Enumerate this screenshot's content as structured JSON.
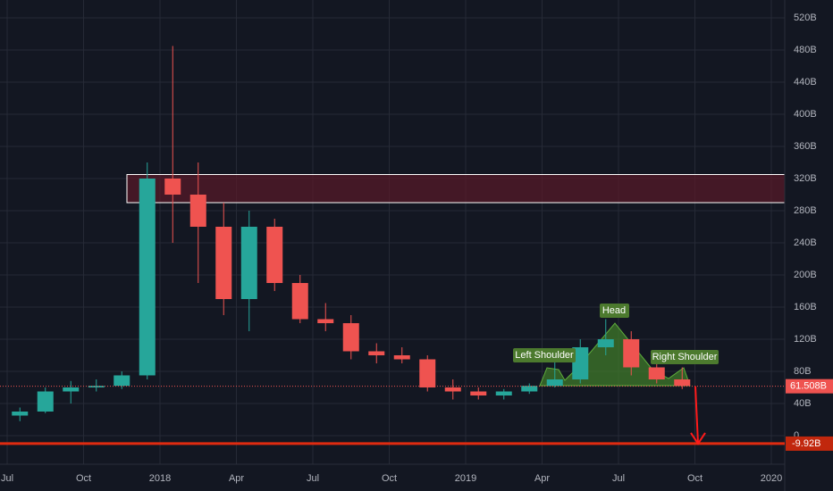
{
  "chart_data": {
    "type": "candlestick",
    "categories": [
      "Jul",
      null,
      null,
      "Oct",
      null,
      null,
      "2018",
      null,
      null,
      "Apr",
      null,
      null,
      "Jul",
      null,
      null,
      "Oct",
      null,
      null,
      "2019",
      null,
      null,
      "Apr",
      null,
      null,
      "Jul",
      null,
      null,
      "Oct",
      null,
      null,
      "2020"
    ],
    "open": [
      25,
      30,
      55,
      60,
      62,
      75,
      320,
      300,
      260,
      170,
      260,
      190,
      145,
      140,
      105,
      100,
      95,
      60,
      55,
      50,
      55,
      62,
      70,
      110,
      120,
      85,
      70,
      null,
      null,
      null,
      null
    ],
    "high": [
      35,
      60,
      68,
      70,
      80,
      340,
      485,
      340,
      290,
      280,
      270,
      200,
      165,
      150,
      115,
      110,
      100,
      70,
      60,
      58,
      65,
      95,
      120,
      145,
      130,
      90,
      85,
      null,
      null,
      null,
      null
    ],
    "low": [
      18,
      28,
      40,
      55,
      58,
      70,
      240,
      190,
      150,
      130,
      180,
      140,
      130,
      95,
      90,
      90,
      55,
      45,
      45,
      45,
      52,
      60,
      65,
      100,
      75,
      65,
      58,
      null,
      null,
      null,
      null
    ],
    "close": [
      30,
      55,
      60,
      62,
      75,
      320,
      300,
      260,
      170,
      260,
      190,
      145,
      140,
      105,
      100,
      95,
      60,
      55,
      50,
      55,
      62,
      70,
      110,
      120,
      85,
      70,
      62,
      null,
      null,
      null,
      null
    ],
    "up_color": "#26a69a",
    "down_color": "#ef5350",
    "ylim": [
      -40,
      540
    ],
    "yticks": [
      {
        "value": 0,
        "label": "0"
      },
      {
        "value": 40,
        "label": "40B"
      },
      {
        "value": 80,
        "label": "80B"
      },
      {
        "value": 120,
        "label": "120B"
      },
      {
        "value": 160,
        "label": "160B"
      },
      {
        "value": 200,
        "label": "200B"
      },
      {
        "value": 240,
        "label": "240B"
      },
      {
        "value": 280,
        "label": "280B"
      },
      {
        "value": 320,
        "label": "320B"
      },
      {
        "value": 360,
        "label": "360B"
      },
      {
        "value": 400,
        "label": "400B"
      },
      {
        "value": 440,
        "label": "440B"
      },
      {
        "value": 480,
        "label": "480B"
      },
      {
        "value": 520,
        "label": "520B"
      }
    ],
    "grid": true,
    "last_price": {
      "value": 61.508,
      "label": "61.508B"
    },
    "target": {
      "value": -9.92,
      "label": "-9.92B"
    },
    "zone": [
      290,
      325
    ],
    "annotations": [
      "Left Shoulder",
      "Head",
      "Right Shoulder"
    ]
  }
}
